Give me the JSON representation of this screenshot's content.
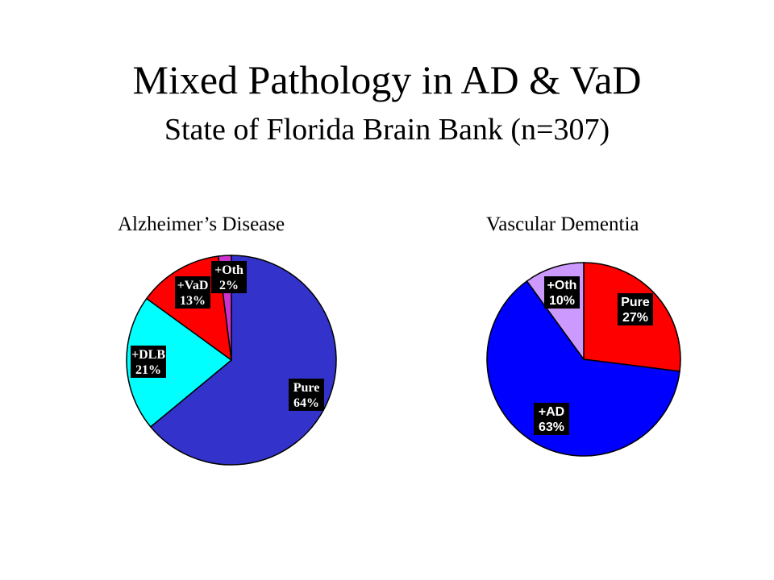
{
  "title": "Mixed Pathology in AD & VaD",
  "subtitle": "State of Florida Brain Bank (n=307)",
  "chart_data": [
    {
      "type": "pie",
      "title": "Alzheimer’s Disease",
      "slices": [
        {
          "label": "Pure",
          "value": 64,
          "display": "64%",
          "color": "#3333cc"
        },
        {
          "label": "+DLB",
          "value": 21,
          "display": "21%",
          "color": "#00ffff"
        },
        {
          "label": "+VaD",
          "value": 13,
          "display": "13%",
          "color": "#ff0000"
        },
        {
          "label": "+Oth",
          "value": 2,
          "display": "2%",
          "color": "#cc33cc"
        }
      ]
    },
    {
      "type": "pie",
      "title": "Vascular Dementia",
      "slices": [
        {
          "label": "Pure",
          "value": 27,
          "display": "27%",
          "color": "#ff0000"
        },
        {
          "label": "+AD",
          "value": 63,
          "display": "63%",
          "color": "#0000ff"
        },
        {
          "label": "+Oth",
          "value": 10,
          "display": "10%",
          "color": "#cc99ff"
        }
      ]
    }
  ]
}
